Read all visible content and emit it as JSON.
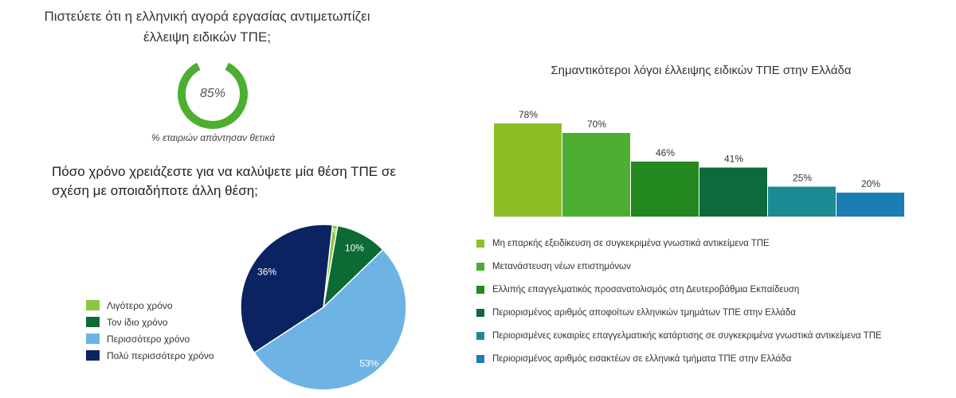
{
  "question1": {
    "line1": "Πιστεύετε ότι η ελληνική αγορά εργασίας αντιμετωπίζει",
    "line2": "έλλειψη ειδικών ΤΠΕ;"
  },
  "question2": {
    "line1": "Πόσο χρόνο χρειάζεστε για να καλύψετε μία θέση ΤΠΕ σε",
    "line2": "σχέση με οποιαδήποτε άλλη θέση;"
  },
  "chart_data": [
    {
      "type": "pie",
      "variant": "donut",
      "value": 85,
      "value_label": "85%",
      "caption": "% εταιριών απάντησαν θετικά",
      "colors": {
        "filled": "#4caf2f",
        "track": "#ffffff"
      }
    },
    {
      "type": "pie",
      "legend_position": "left",
      "slices": [
        {
          "label": "Λιγότερο χρόνο",
          "value": 1,
          "value_label": "1%",
          "color": "#8cc63f",
          "label_color": "#ffffff"
        },
        {
          "label": "Τον ίδιο χρόνο",
          "value": 10,
          "value_label": "10%",
          "color": "#0c6b35",
          "label_color": "#ffffff"
        },
        {
          "label": "Περισσότερο χρόνο",
          "value": 53,
          "value_label": "53%",
          "color": "#6db3e4",
          "label_color": "#ffffff"
        },
        {
          "label": "Πολύ περισσότερο χρόνο",
          "value": 36,
          "value_label": "36%",
          "color": "#0b2461",
          "label_color": "#ffffff"
        }
      ]
    },
    {
      "type": "bar",
      "title": "Σημαντικότεροι λόγοι έλλειψης ειδικών ΤΠΕ στην Ελλάδα",
      "legend_position": "bottom",
      "ylim": [
        0,
        100
      ],
      "bars": [
        {
          "label": "Μη επαρκής εξειδίκευση σε συγκεκριμένα γνωστικά αντικείμενα ΤΠΕ",
          "value": 78,
          "value_label": "78%",
          "color": "#8cbf26"
        },
        {
          "label": "Μετανάστευση νέων επιστημόνων",
          "value": 70,
          "value_label": "70%",
          "color": "#4caf32"
        },
        {
          "label": "Ελλιπής επαγγελματικός προσανατολισμός στη Δευτεροβάθμια Εκπαίδευση",
          "value": 46,
          "value_label": "46%",
          "color": "#23881f"
        },
        {
          "label": "Περιορισμένος αριθμός αποφοίτων ελληνικών τμημάτων ΤΠΕ στην Ελλάδα",
          "value": 41,
          "value_label": "41%",
          "color": "#0e6a3b"
        },
        {
          "label": "Περιορισμένες ευκαιρίες επαγγελματικής κατάρτισης σε συγκεκριμένα γνωστικά αντικείμενα ΤΠΕ",
          "value": 25,
          "value_label": "25%",
          "color": "#1b8a92"
        },
        {
          "label": "Περιορισμένος αριθμός εισακτέων σε ελληνικά τμήματα ΤΠΕ στην Ελλάδα",
          "value": 20,
          "value_label": "20%",
          "color": "#1a7db3"
        }
      ]
    }
  ]
}
